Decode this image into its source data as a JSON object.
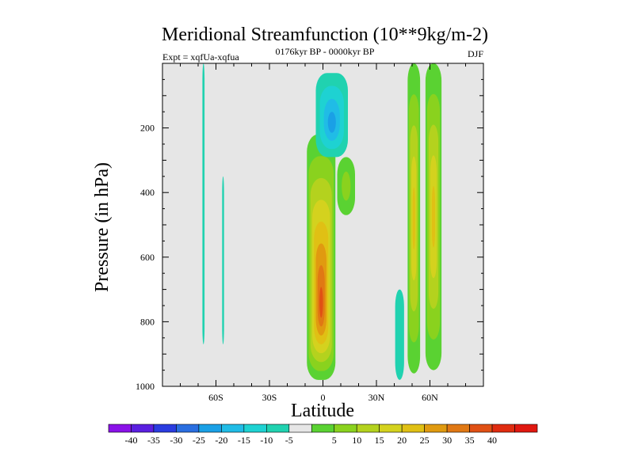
{
  "chart_data": {
    "type": "heatmap",
    "title": "Meridional Streamfunction (10**9kg/m-2)",
    "subtitle": "0176kyr BP - 0000kyr BP",
    "left_annotation": "Expt = xqfUa-xqfua",
    "right_annotation": "DJF",
    "xlabel": "Latitude",
    "ylabel": "Pressure (in hPa)",
    "xlim": [
      -90,
      90
    ],
    "ylim": [
      1000,
      0
    ],
    "x_ticks": [
      {
        "value": -60,
        "label": "60S"
      },
      {
        "value": -30,
        "label": "30S"
      },
      {
        "value": 0,
        "label": "0"
      },
      {
        "value": 30,
        "label": "30N"
      },
      {
        "value": 60,
        "label": "60N"
      }
    ],
    "y_ticks": [
      {
        "value": 200,
        "label": "200"
      },
      {
        "value": 400,
        "label": "400"
      },
      {
        "value": 600,
        "label": "600"
      },
      {
        "value": 800,
        "label": "800"
      },
      {
        "value": 1000,
        "label": "1000"
      }
    ],
    "background_color": "#e6e6e6",
    "colorbar": {
      "colors": [
        "#8a12e8",
        "#5a1fe0",
        "#2a3ce0",
        "#2a6ee0",
        "#1aa0e6",
        "#20bce6",
        "#1ed2d2",
        "#20d2b0",
        "#e6e6e6",
        "#5ad232",
        "#8ad21e",
        "#b4d21e",
        "#d4d21e",
        "#e0c014",
        "#e09a10",
        "#e07814",
        "#e05014",
        "#e02c10",
        "#e01810"
      ],
      "labels": [
        "-40",
        "-35",
        "-30",
        "-25",
        "-20",
        "-15",
        "-10",
        "-5",
        "5",
        "10",
        "15",
        "20",
        "25",
        "30",
        "35",
        "40"
      ]
    },
    "features": [
      {
        "name": "polar-south-strip",
        "lat_center": -67,
        "lat_half_width": 0.6,
        "p_top": 0,
        "p_bottom": 870,
        "value": -6
      },
      {
        "name": "midlat-south-strip",
        "lat_center": -56,
        "lat_half_width": 0.5,
        "p_top": 350,
        "p_bottom": 870,
        "value": -6
      },
      {
        "name": "hadley-south-cell",
        "lat_center": -1,
        "lat_half_width": 8,
        "p_top": 220,
        "p_bottom": 980,
        "peak_p": 760,
        "value": 40
      },
      {
        "name": "upper-trop-negative-cell",
        "lat_center": 5,
        "lat_half_width": 9,
        "p_top": 30,
        "p_bottom": 290,
        "peak_p": 190,
        "value": -22
      },
      {
        "name": "subtropical-north-positive",
        "lat_center": 13,
        "lat_half_width": 5,
        "p_top": 290,
        "p_bottom": 470,
        "value": 10
      },
      {
        "name": "midlat-north-band-1",
        "lat_center": 51,
        "lat_half_width": 3.5,
        "p_top": 0,
        "p_bottom": 960,
        "value": 28
      },
      {
        "name": "midlat-north-band-2",
        "lat_center": 62,
        "lat_half_width": 4.5,
        "p_top": 0,
        "p_bottom": 950,
        "value": 28
      },
      {
        "name": "midlat-north-negative-strip",
        "lat_center": 43,
        "lat_half_width": 2.5,
        "p_top": 700,
        "p_bottom": 980,
        "value": -6
      }
    ]
  }
}
